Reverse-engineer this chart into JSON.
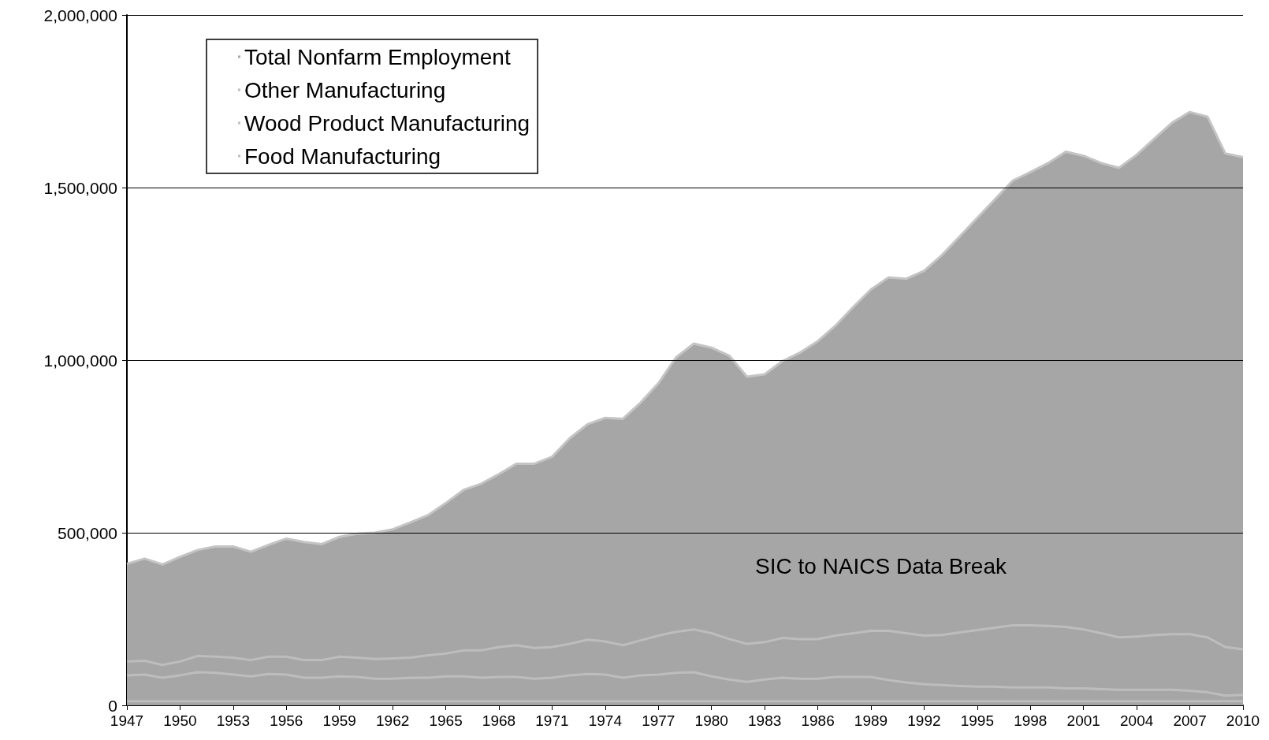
{
  "chart_data": {
    "type": "area",
    "x": [
      1947,
      1948,
      1949,
      1950,
      1951,
      1952,
      1953,
      1954,
      1955,
      1956,
      1957,
      1958,
      1959,
      1960,
      1961,
      1962,
      1963,
      1964,
      1965,
      1966,
      1967,
      1968,
      1969,
      1970,
      1971,
      1972,
      1973,
      1974,
      1975,
      1976,
      1977,
      1978,
      1979,
      1980,
      1981,
      1982,
      1983,
      1984,
      1985,
      1986,
      1987,
      1988,
      1989,
      1990,
      1991,
      1992,
      1993,
      1994,
      1995,
      1996,
      1997,
      1998,
      1999,
      2000,
      2001,
      2002,
      2003,
      2004,
      2005,
      2006,
      2007,
      2008,
      2009,
      2010
    ],
    "series": [
      {
        "name": "Total Nonfarm Employment",
        "color": "#a6a6a6",
        "values": [
          410000,
          425000,
          408000,
          430000,
          450000,
          460000,
          460000,
          445000,
          465000,
          483000,
          473000,
          467000,
          488000,
          497000,
          500000,
          510000,
          530000,
          551000,
          586000,
          624000,
          642000,
          670000,
          700000,
          700000,
          720000,
          774000,
          814000,
          833000,
          830000,
          877000,
          933000,
          1008000,
          1048000,
          1036000,
          1013000,
          952000,
          959000,
          997000,
          1022000,
          1055000,
          1100000,
          1154000,
          1205000,
          1240000,
          1236000,
          1259000,
          1304000,
          1358000,
          1412000,
          1466000,
          1520000,
          1545000,
          1571000,
          1604000,
          1592000,
          1571000,
          1557000,
          1595000,
          1642000,
          1688000,
          1719000,
          1705000,
          1599000,
          1588000
        ]
      },
      {
        "name": "Other Manufacturing",
        "type": "line",
        "color": "#bdbdbd",
        "values": [
          127000,
          129000,
          117000,
          127000,
          143000,
          141000,
          138000,
          131000,
          141000,
          141000,
          131000,
          131000,
          141000,
          138000,
          134000,
          136000,
          138000,
          145000,
          150000,
          159000,
          159000,
          169000,
          174000,
          166000,
          169000,
          178000,
          190000,
          185000,
          174000,
          188000,
          202000,
          213000,
          220000,
          209000,
          192000,
          178000,
          183000,
          195000,
          192000,
          192000,
          202000,
          209000,
          216000,
          216000,
          209000,
          202000,
          204000,
          211000,
          218000,
          225000,
          232000,
          232000,
          230000,
          227000,
          220000,
          209000,
          197000,
          199000,
          204000,
          206000,
          206000,
          197000,
          169000,
          162000
        ]
      },
      {
        "name": "Wood Product Manufacturing",
        "type": "line",
        "color": "#bdbdbd",
        "values": [
          87000,
          89000,
          80000,
          87000,
          96000,
          94000,
          89000,
          84000,
          91000,
          89000,
          80000,
          80000,
          84000,
          82000,
          77000,
          77000,
          80000,
          80000,
          84000,
          84000,
          80000,
          82000,
          82000,
          77000,
          80000,
          87000,
          91000,
          89000,
          80000,
          87000,
          89000,
          94000,
          96000,
          84000,
          75000,
          68000,
          75000,
          80000,
          77000,
          77000,
          82000,
          82000,
          82000,
          73000,
          66000,
          61000,
          59000,
          56000,
          54000,
          54000,
          52000,
          52000,
          52000,
          49000,
          49000,
          47000,
          45000,
          45000,
          45000,
          45000,
          42000,
          38000,
          28000,
          30000
        ]
      },
      {
        "name": "Food Manufacturing",
        "type": "line",
        "color": "#bdbdbd",
        "values": [
          12000,
          12000,
          12000,
          12000,
          12000,
          12000,
          12000,
          12000,
          12000,
          12000,
          12000,
          12000,
          12000,
          12000,
          12000,
          12000,
          12000,
          12000,
          12000,
          12000,
          12000,
          12000,
          12000,
          12000,
          12000,
          12000,
          12000,
          12000,
          12000,
          12000,
          12000,
          12000,
          12000,
          12000,
          12000,
          12000,
          12000,
          12000,
          12000,
          12000,
          12000,
          12000,
          12000,
          12000,
          12000,
          12000,
          12000,
          12000,
          12000,
          12000,
          12000,
          12000,
          12000,
          12000,
          12000,
          12000,
          12000,
          12000,
          12000,
          12000,
          12000,
          12000,
          12000,
          12000
        ]
      }
    ],
    "annotations": [
      "SIC to NAICS Data Break"
    ],
    "xlim": [
      1947,
      2010
    ],
    "xticks": [
      1947,
      1950,
      1953,
      1956,
      1959,
      1962,
      1965,
      1968,
      1971,
      1974,
      1977,
      1980,
      1983,
      1986,
      1989,
      1992,
      1995,
      1998,
      2001,
      2004,
      2007,
      2010
    ],
    "ylim": [
      0,
      2000000
    ],
    "yticks": [
      0,
      {
        "value": 500000,
        "label": "500,000"
      },
      {
        "value": 1000000,
        "label": "1,000,000"
      },
      {
        "value": 1500000,
        "label": "1,500,000"
      },
      {
        "value": 2000000,
        "label": "2,000,000"
      }
    ],
    "grid": "y",
    "legend": "top left",
    "marker": "none",
    "line_style": "solid"
  }
}
